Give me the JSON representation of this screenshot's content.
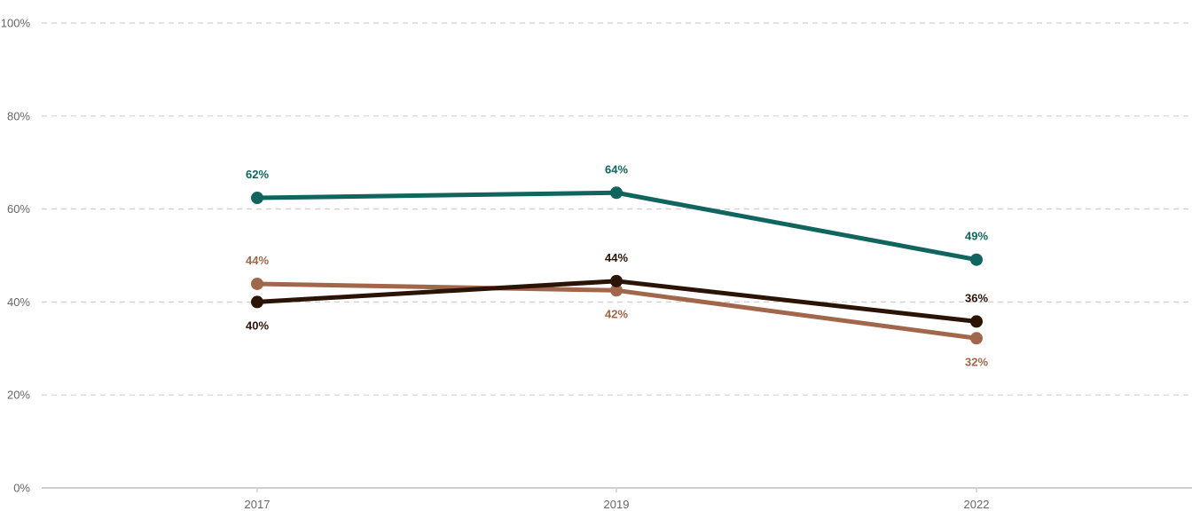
{
  "chart_data": {
    "type": "line",
    "categories": [
      "2017",
      "2019",
      "2022"
    ],
    "ylim": [
      0,
      100
    ],
    "y_ticks": [
      0,
      20,
      40,
      60,
      80,
      100
    ],
    "y_tick_labels": [
      "0%",
      "20%",
      "40%",
      "60%",
      "80%",
      "100%"
    ],
    "grid": true,
    "series": [
      {
        "color": "#10655f",
        "values": [
          62.4,
          63.5,
          49.1
        ],
        "labels": [
          "62%",
          "64%",
          "49%"
        ],
        "label_positions": [
          "above",
          "above",
          "above"
        ]
      },
      {
        "color": "#a0674a",
        "values": [
          43.9,
          42.5,
          32.2
        ],
        "labels": [
          "44%",
          "42%",
          "32%"
        ],
        "label_positions": [
          "above",
          "below",
          "below"
        ]
      },
      {
        "color": "#2b1306",
        "values": [
          40.0,
          44.5,
          35.8
        ],
        "labels": [
          "40%",
          "44%",
          "36%"
        ],
        "label_positions": [
          "below",
          "above",
          "above"
        ]
      }
    ]
  }
}
